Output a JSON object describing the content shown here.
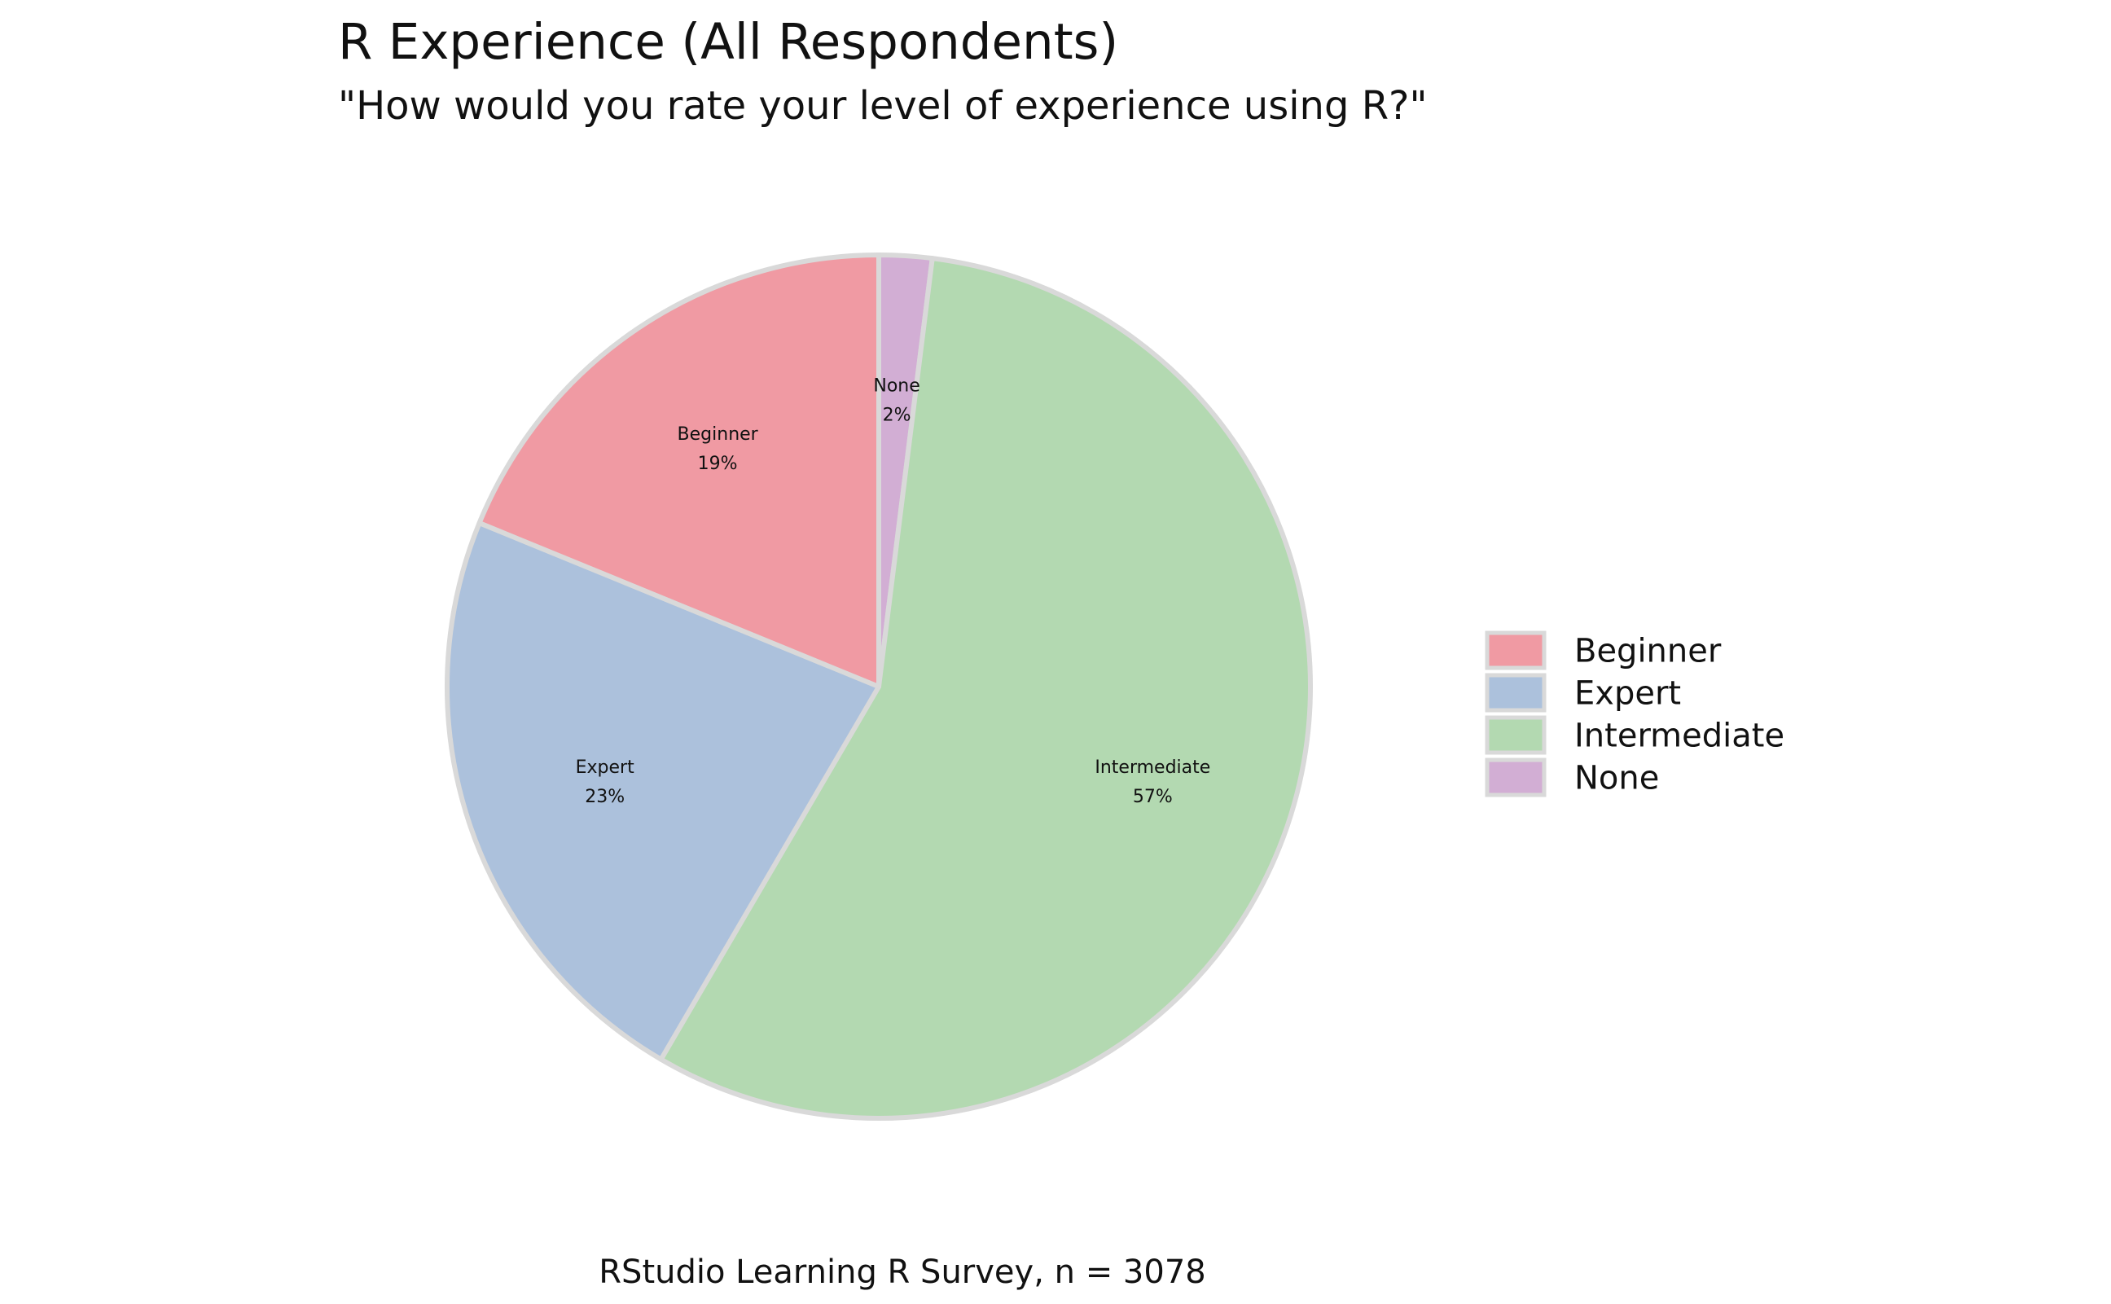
{
  "chart_data": {
    "type": "pie",
    "title": "R Experience (All Respondents)",
    "subtitle": "\"How would you rate your level of experience using R?\"",
    "caption": "RStudio Learning R Survey, n = 3078",
    "slices": [
      {
        "category": "None",
        "percent": 2,
        "label": "2%",
        "color": "#d2aed4"
      },
      {
        "category": "Intermediate",
        "percent": 57,
        "label": "57%",
        "color": "#b3d9b1"
      },
      {
        "category": "Expert",
        "percent": 23,
        "label": "23%",
        "color": "#acc1dc"
      },
      {
        "category": "Beginner",
        "percent": 19,
        "label": "19%",
        "color": "#f09aa3"
      }
    ],
    "legend": {
      "position": "right",
      "items": [
        {
          "label": "Beginner",
          "color": "#f09aa3"
        },
        {
          "label": "Expert",
          "color": "#acc1dc"
        },
        {
          "label": "Intermediate",
          "color": "#b3d9b1"
        },
        {
          "label": "None",
          "color": "#d2aed4"
        }
      ]
    },
    "slice_outline_color": "#d9d9d9",
    "start_angle": "12 o'clock",
    "direction": "clockwise"
  }
}
